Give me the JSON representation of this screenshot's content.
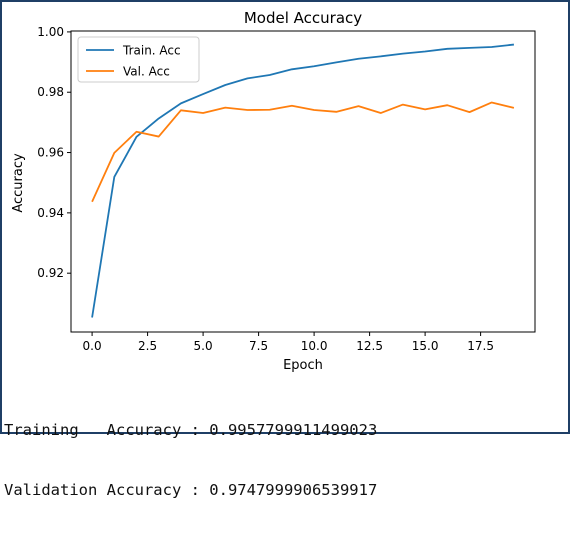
{
  "chart_data": {
    "type": "line",
    "title": "Model Accuracy",
    "xlabel": "Epoch",
    "ylabel": "Accuracy",
    "xlim": [
      -0.95,
      19.95
    ],
    "ylim": [
      0.9005,
      1.0003
    ],
    "x_ticks": [
      0.0,
      2.5,
      5.0,
      7.5,
      10.0,
      12.5,
      15.0,
      17.5
    ],
    "x_tick_labels": [
      "0.0",
      "2.5",
      "5.0",
      "7.5",
      "10.0",
      "12.5",
      "15.0",
      "17.5"
    ],
    "y_ticks": [
      0.92,
      0.94,
      0.96,
      0.98,
      1.0
    ],
    "y_tick_labels": [
      "0.92",
      "0.94",
      "0.96",
      "0.98",
      "1.00"
    ],
    "grid": false,
    "legend_position": "upper-left",
    "x": [
      0,
      1,
      2,
      3,
      4,
      5,
      6,
      7,
      8,
      9,
      10,
      11,
      12,
      13,
      14,
      15,
      16,
      17,
      18,
      19
    ],
    "series": [
      {
        "name": "Train. Acc",
        "color": "#1f77b4",
        "values": [
          0.9053,
          0.9519,
          0.9652,
          0.9713,
          0.9763,
          0.9794,
          0.9824,
          0.9846,
          0.9857,
          0.9876,
          0.9886,
          0.9899,
          0.9911,
          0.9919,
          0.9928,
          0.9935,
          0.9944,
          0.9947,
          0.995,
          0.9958
        ]
      },
      {
        "name": "Val. Acc",
        "color": "#ff7f0e",
        "values": [
          0.9437,
          0.9599,
          0.9669,
          0.9653,
          0.974,
          0.9731,
          0.9749,
          0.9741,
          0.9742,
          0.9755,
          0.9741,
          0.9735,
          0.9754,
          0.9731,
          0.9759,
          0.9743,
          0.9757,
          0.9734,
          0.9766,
          0.9748
        ]
      }
    ]
  },
  "output": {
    "training_line": "Training   Accuracy : 0.9957799911499023",
    "validation_line": "Validation Accuracy : 0.9747999906539917"
  }
}
